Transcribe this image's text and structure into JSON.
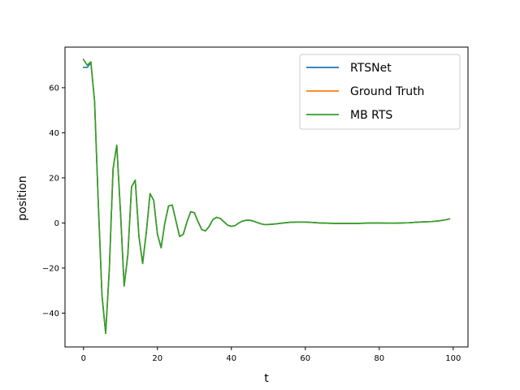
{
  "chart_data": {
    "type": "line",
    "title": "",
    "xlabel": "t",
    "ylabel": "position",
    "xlim": [
      -5,
      104
    ],
    "ylim": [
      -55,
      78
    ],
    "xticks": [
      0,
      20,
      40,
      60,
      80,
      100
    ],
    "yticks": [
      -40,
      -20,
      0,
      20,
      40,
      60
    ],
    "grid": false,
    "legend_position": "top-right",
    "series": [
      {
        "name": "RTSNet",
        "color": "#1f77b4",
        "x": [
          0,
          1,
          2,
          3,
          4,
          5,
          6,
          7,
          8,
          9,
          10,
          11,
          12,
          13,
          14,
          15,
          16,
          17,
          18,
          19,
          20,
          21,
          22,
          23,
          24,
          25,
          26,
          27,
          28,
          29,
          30,
          31,
          32,
          33,
          34,
          35,
          36,
          37,
          38,
          39,
          40,
          41,
          42,
          43,
          44,
          45,
          46,
          47,
          48,
          49,
          50,
          52,
          54,
          56,
          58,
          60,
          62,
          64,
          66,
          68,
          70,
          72,
          74,
          76,
          78,
          80,
          82,
          84,
          86,
          88,
          90,
          92,
          94,
          96,
          98,
          99
        ],
        "y": [
          69,
          69,
          71,
          54,
          9,
          -32,
          -49,
          -20,
          24,
          34.5,
          5,
          -28,
          -14,
          16,
          19,
          -6,
          -18,
          -4,
          13,
          10,
          -5,
          -11,
          0,
          7.5,
          8,
          1,
          -6,
          -5,
          0.5,
          5,
          4.5,
          0.5,
          -3,
          -3.5,
          -1.5,
          1.5,
          2.5,
          2,
          0.5,
          -1,
          -1.5,
          -1.2,
          0,
          0.8,
          1.2,
          1.2,
          0.8,
          0.2,
          -0.4,
          -0.7,
          -0.7,
          -0.4,
          0,
          0.3,
          0.4,
          0.4,
          0.2,
          0,
          -0.1,
          -0.2,
          -0.2,
          -0.2,
          -0.2,
          -0.1,
          0,
          0,
          -0.1,
          -0.1,
          0,
          0.1,
          0.3,
          0.5,
          0.6,
          0.9,
          1.4,
          1.8
        ]
      },
      {
        "name": "Ground Truth",
        "color": "#ff7f0e",
        "x": [
          0,
          1,
          2,
          3,
          4,
          5,
          6,
          7,
          8,
          9,
          10,
          11,
          12,
          13,
          14,
          15,
          16,
          17,
          18,
          19,
          20,
          21,
          22,
          23,
          24,
          25,
          26,
          27,
          28,
          29,
          30,
          31,
          32,
          33,
          34,
          35,
          36,
          37,
          38,
          39,
          40,
          41,
          42,
          43,
          44,
          45,
          46,
          47,
          48,
          49,
          50,
          52,
          54,
          56,
          58,
          60,
          62,
          64,
          66,
          68,
          70,
          72,
          74,
          76,
          78,
          80,
          82,
          84,
          86,
          88,
          90,
          92,
          94,
          96,
          98,
          99
        ],
        "y": [
          72.5,
          70,
          71.5,
          54,
          9,
          -32,
          -49,
          -20,
          24,
          34.5,
          5,
          -28,
          -14,
          16,
          19,
          -6,
          -18,
          -4,
          13,
          10,
          -5,
          -11,
          0,
          7.5,
          8,
          1,
          -6,
          -5,
          0.5,
          5,
          4.5,
          0.5,
          -3,
          -3.5,
          -1.5,
          1.5,
          2.5,
          2,
          0.5,
          -1,
          -1.5,
          -1.2,
          0,
          0.8,
          1.2,
          1.2,
          0.8,
          0.2,
          -0.4,
          -0.7,
          -0.7,
          -0.4,
          0,
          0.3,
          0.4,
          0.4,
          0.2,
          0,
          -0.1,
          -0.2,
          -0.2,
          -0.2,
          -0.2,
          -0.1,
          0,
          0,
          -0.1,
          -0.1,
          0,
          0.1,
          0.3,
          0.5,
          0.6,
          0.9,
          1.4,
          1.8
        ]
      },
      {
        "name": "MB RTS",
        "color": "#2ca02c",
        "x": [
          0,
          1,
          2,
          3,
          4,
          5,
          6,
          7,
          8,
          9,
          10,
          11,
          12,
          13,
          14,
          15,
          16,
          17,
          18,
          19,
          20,
          21,
          22,
          23,
          24,
          25,
          26,
          27,
          28,
          29,
          30,
          31,
          32,
          33,
          34,
          35,
          36,
          37,
          38,
          39,
          40,
          41,
          42,
          43,
          44,
          45,
          46,
          47,
          48,
          49,
          50,
          52,
          54,
          56,
          58,
          60,
          62,
          64,
          66,
          68,
          70,
          72,
          74,
          76,
          78,
          80,
          82,
          84,
          86,
          88,
          90,
          92,
          94,
          96,
          98,
          99
        ],
        "y": [
          72.5,
          70,
          71.5,
          54,
          9,
          -32,
          -49,
          -20,
          24,
          34.5,
          5,
          -28,
          -14,
          16,
          19,
          -6,
          -18,
          -4,
          13,
          10,
          -5,
          -11,
          0,
          7.5,
          8,
          1,
          -6,
          -5,
          0.5,
          5,
          4.5,
          0.5,
          -3,
          -3.5,
          -1.5,
          1.5,
          2.5,
          2,
          0.5,
          -1,
          -1.5,
          -1.2,
          0,
          0.8,
          1.2,
          1.2,
          0.8,
          0.2,
          -0.4,
          -0.7,
          -0.7,
          -0.4,
          0,
          0.3,
          0.4,
          0.4,
          0.2,
          0,
          -0.1,
          -0.2,
          -0.2,
          -0.2,
          -0.2,
          -0.1,
          0,
          0,
          -0.1,
          -0.1,
          0,
          0.1,
          0.3,
          0.5,
          0.6,
          0.9,
          1.4,
          1.8
        ]
      }
    ]
  }
}
